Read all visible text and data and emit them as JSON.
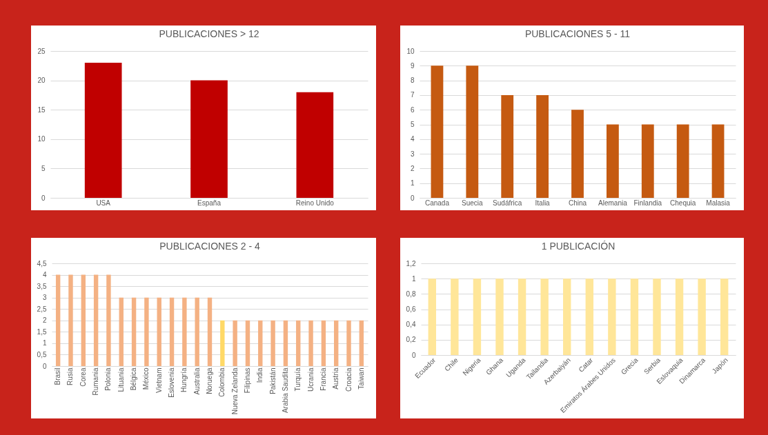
{
  "chart_data": [
    {
      "type": "bar",
      "title": "PUBLICACIONES > 12",
      "categories": [
        "USA",
        "España",
        "Reino Unido"
      ],
      "values": [
        23,
        20,
        18
      ],
      "color": "#c00000",
      "ylim": [
        0,
        25
      ],
      "yticks": [
        0,
        5,
        10,
        15,
        20,
        25
      ],
      "grid": "y"
    },
    {
      "type": "bar",
      "title": "PUBLICACIONES 5 - 11",
      "categories": [
        "Canada",
        "Suecia",
        "Sudáfrica",
        "Italia",
        "China",
        "Alemania",
        "Finlandia",
        "Chequia",
        "Malasia"
      ],
      "values": [
        9,
        9,
        7,
        7,
        6,
        5,
        5,
        5,
        5
      ],
      "color": "#c55a11",
      "ylim": [
        0,
        10
      ],
      "yticks": [
        0,
        1,
        2,
        3,
        4,
        5,
        6,
        7,
        8,
        9,
        10
      ],
      "grid": "y"
    },
    {
      "type": "bar",
      "title": "PUBLICACIONES 2 - 4",
      "categories": [
        "Brasil",
        "Rusia",
        "Corea",
        "Rumania",
        "Polonia",
        "Lituania",
        "Bélgica",
        "México",
        "Vietnam",
        "Eslovenia",
        "Hungría",
        "Australia",
        "Noruega",
        "Colombia",
        "Nueva Zelanda",
        "Filipinas",
        "India",
        "Pakistán",
        "Arabia Saudita",
        "Turquía",
        "Ucrania",
        "Francia",
        "Austria",
        "Croacia",
        "Taiwan"
      ],
      "values": [
        4,
        4,
        4,
        4,
        4,
        3,
        3,
        3,
        3,
        3,
        3,
        3,
        3,
        2,
        2,
        2,
        2,
        2,
        2,
        2,
        2,
        2,
        2,
        2,
        2
      ],
      "colors": [
        "#f4b183",
        "#f4b183",
        "#f4b183",
        "#f4b183",
        "#f4b183",
        "#f4b183",
        "#f4b183",
        "#f4b183",
        "#f4b183",
        "#f4b183",
        "#f4b183",
        "#f4b183",
        "#f4b183",
        "#ffd966",
        "#f4b183",
        "#f4b183",
        "#f4b183",
        "#f4b183",
        "#f4b183",
        "#f4b183",
        "#f4b183",
        "#f4b183",
        "#f4b183",
        "#f4b183",
        "#f4b183"
      ],
      "ylim": [
        0,
        4.5
      ],
      "yticks": [
        0,
        {
          "value": 0.5,
          "label": "0,5"
        },
        1,
        {
          "value": 1.5,
          "label": "1,5"
        },
        2,
        {
          "value": 2.5,
          "label": "2,5"
        },
        3,
        {
          "value": 3.5,
          "label": "3,5"
        },
        4,
        {
          "value": 4.5,
          "label": "4,5"
        }
      ],
      "grid": "y"
    },
    {
      "type": "bar",
      "title": "1 PUBLICACIÓN",
      "categories": [
        "Ecuador",
        "Chile",
        "Nigeria",
        "Ghana",
        "Uganda",
        "Tailandia",
        "Azerbaiyán",
        "Catar",
        "Emiratos Árabes Unidos",
        "Grecia",
        "Serbia",
        "Eslovaquia",
        "Dinamarca",
        "Japón"
      ],
      "values": [
        1,
        1,
        1,
        1,
        1,
        1,
        1,
        1,
        1,
        1,
        1,
        1,
        1,
        1
      ],
      "color": "#ffe699",
      "ylim": [
        0,
        1.2
      ],
      "yticks": [
        0,
        {
          "value": 0.2,
          "label": "0,2"
        },
        {
          "value": 0.4,
          "label": "0,4"
        },
        {
          "value": 0.6,
          "label": "0,6"
        },
        {
          "value": 0.8,
          "label": "0,8"
        },
        1,
        {
          "value": 1.2,
          "label": "1,2"
        }
      ],
      "grid": "y"
    }
  ]
}
